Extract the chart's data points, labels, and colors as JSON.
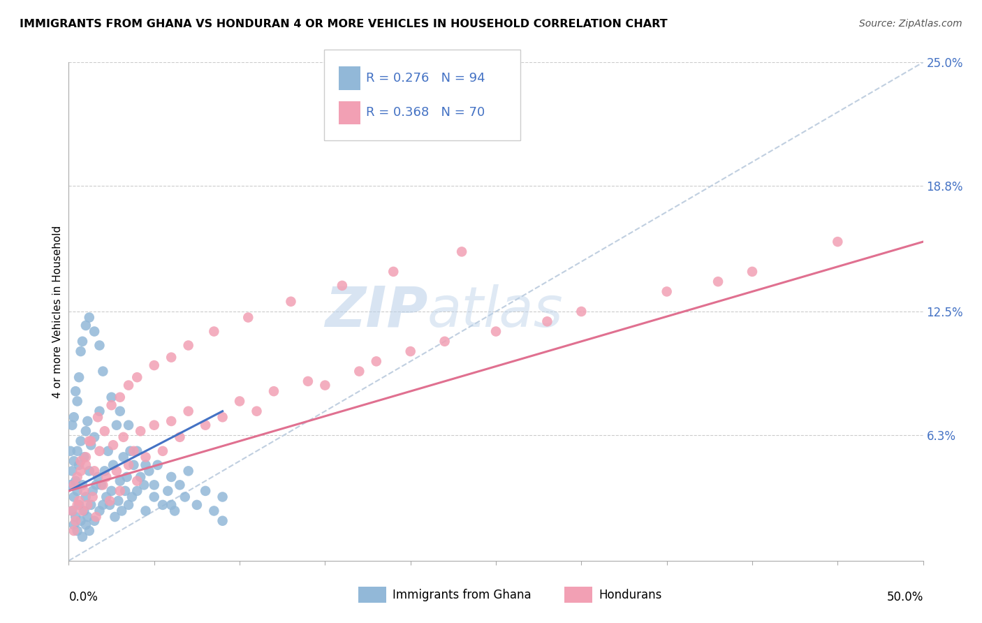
{
  "title": "IMMIGRANTS FROM GHANA VS HONDURAN 4 OR MORE VEHICLES IN HOUSEHOLD CORRELATION CHART",
  "source": "Source: ZipAtlas.com",
  "xmin": 0.0,
  "xmax": 50.0,
  "ymin": 0.0,
  "ymax": 25.0,
  "ytick_vals": [
    6.3,
    12.5,
    18.8,
    25.0
  ],
  "legend_blue_r": "R = 0.276",
  "legend_blue_n": "N = 94",
  "legend_pink_r": "R = 0.368",
  "legend_pink_n": "N = 70",
  "watermark_zip": "ZIP",
  "watermark_atlas": "atlas",
  "blue_color": "#92b8d8",
  "pink_color": "#f2a0b4",
  "blue_line_color": "#4472c4",
  "pink_line_color": "#e07090",
  "ref_line_color": "#c0cfe0",
  "legend_r_color": "#4472c4",
  "legend_n_color": "#cc3366",
  "ghana_x": [
    0.1,
    0.2,
    0.2,
    0.3,
    0.3,
    0.3,
    0.4,
    0.4,
    0.5,
    0.5,
    0.5,
    0.6,
    0.6,
    0.7,
    0.7,
    0.8,
    0.8,
    0.9,
    0.9,
    1.0,
    1.0,
    1.0,
    1.1,
    1.1,
    1.2,
    1.2,
    1.3,
    1.3,
    1.4,
    1.5,
    1.5,
    1.6,
    1.7,
    1.8,
    1.8,
    1.9,
    2.0,
    2.1,
    2.2,
    2.3,
    2.4,
    2.5,
    2.6,
    2.7,
    2.8,
    2.9,
    3.0,
    3.1,
    3.2,
    3.3,
    3.4,
    3.5,
    3.6,
    3.7,
    3.8,
    4.0,
    4.2,
    4.4,
    4.5,
    4.7,
    5.0,
    5.2,
    5.5,
    5.8,
    6.0,
    6.2,
    6.5,
    6.8,
    7.0,
    7.5,
    8.0,
    8.5,
    9.0,
    9.0,
    0.1,
    0.2,
    0.3,
    0.4,
    0.5,
    0.6,
    0.7,
    0.8,
    1.0,
    1.2,
    1.5,
    1.8,
    2.0,
    2.5,
    3.0,
    3.5,
    4.0,
    4.5,
    5.0,
    6.0
  ],
  "ghana_y": [
    3.8,
    2.5,
    4.5,
    1.8,
    3.2,
    5.0,
    2.2,
    4.0,
    1.5,
    3.5,
    5.5,
    2.8,
    4.8,
    2.0,
    6.0,
    1.2,
    3.8,
    2.5,
    5.2,
    1.8,
    3.2,
    6.5,
    2.2,
    7.0,
    1.5,
    4.5,
    2.8,
    5.8,
    3.5,
    2.0,
    6.2,
    3.8,
    4.2,
    2.5,
    7.5,
    3.8,
    2.8,
    4.5,
    3.2,
    5.5,
    2.8,
    3.5,
    4.8,
    2.2,
    6.8,
    3.0,
    4.0,
    2.5,
    5.2,
    3.5,
    4.2,
    2.8,
    5.5,
    3.2,
    4.8,
    3.5,
    4.2,
    3.8,
    2.5,
    4.5,
    3.2,
    4.8,
    2.8,
    3.5,
    4.2,
    2.5,
    3.8,
    3.2,
    4.5,
    2.8,
    3.5,
    2.5,
    3.2,
    2.0,
    5.5,
    6.8,
    7.2,
    8.5,
    8.0,
    9.2,
    10.5,
    11.0,
    11.8,
    12.2,
    11.5,
    10.8,
    9.5,
    8.2,
    7.5,
    6.8,
    5.5,
    4.8,
    3.8,
    2.8
  ],
  "honduran_x": [
    0.2,
    0.3,
    0.4,
    0.5,
    0.6,
    0.7,
    0.8,
    0.9,
    1.0,
    1.1,
    1.2,
    1.4,
    1.5,
    1.6,
    1.8,
    2.0,
    2.2,
    2.4,
    2.6,
    2.8,
    3.0,
    3.2,
    3.5,
    3.8,
    4.0,
    4.2,
    4.5,
    5.0,
    5.5,
    6.0,
    6.5,
    7.0,
    8.0,
    9.0,
    10.0,
    11.0,
    12.0,
    14.0,
    15.0,
    17.0,
    18.0,
    20.0,
    22.0,
    25.0,
    28.0,
    30.0,
    35.0,
    38.0,
    40.0,
    45.0,
    0.3,
    0.5,
    0.7,
    1.0,
    1.3,
    1.7,
    2.1,
    2.5,
    3.0,
    3.5,
    4.0,
    5.0,
    6.0,
    7.0,
    8.5,
    10.5,
    13.0,
    16.0,
    19.0,
    23.0
  ],
  "honduran_y": [
    2.5,
    3.8,
    2.0,
    4.2,
    3.0,
    5.0,
    2.5,
    3.5,
    4.8,
    2.8,
    6.0,
    3.2,
    4.5,
    2.2,
    5.5,
    3.8,
    4.2,
    3.0,
    5.8,
    4.5,
    3.5,
    6.2,
    4.8,
    5.5,
    4.0,
    6.5,
    5.2,
    6.8,
    5.5,
    7.0,
    6.2,
    7.5,
    6.8,
    7.2,
    8.0,
    7.5,
    8.5,
    9.0,
    8.8,
    9.5,
    10.0,
    10.5,
    11.0,
    11.5,
    12.0,
    12.5,
    13.5,
    14.0,
    14.5,
    16.0,
    1.5,
    2.8,
    4.5,
    5.2,
    6.0,
    7.2,
    6.5,
    7.8,
    8.2,
    8.8,
    9.2,
    9.8,
    10.2,
    10.8,
    11.5,
    12.2,
    13.0,
    13.8,
    14.5,
    15.5
  ],
  "blue_trend_x": [
    0.0,
    9.0
  ],
  "blue_trend_y": [
    3.5,
    7.5
  ],
  "pink_trend_x": [
    0.0,
    50.0
  ],
  "pink_trend_y": [
    3.5,
    16.0
  ],
  "ref_line_x": [
    0.0,
    50.0
  ],
  "ref_line_y": [
    0.0,
    25.0
  ]
}
